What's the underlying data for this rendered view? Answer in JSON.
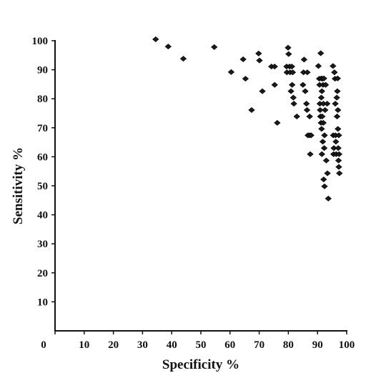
{
  "chart_data": {
    "type": "scatter",
    "xlabel": "Specificity %",
    "ylabel": "Sensitivity %",
    "xlim": [
      0,
      100
    ],
    "ylim": [
      0,
      100
    ],
    "xticks": [
      0,
      10,
      20,
      30,
      40,
      50,
      60,
      70,
      80,
      90,
      100
    ],
    "yticks": [
      10,
      20,
      30,
      40,
      50,
      60,
      70,
      80,
      90,
      100
    ],
    "grid": false,
    "legend": "none",
    "marker": "diamond",
    "color": "#1a1a1a",
    "points": [
      {
        "x": 34.5,
        "y": 100.5
      },
      {
        "x": 38.8,
        "y": 98.0
      },
      {
        "x": 44.0,
        "y": 93.8
      },
      {
        "x": 54.6,
        "y": 97.8
      },
      {
        "x": 60.4,
        "y": 89.2
      },
      {
        "x": 64.5,
        "y": 93.6
      },
      {
        "x": 65.3,
        "y": 86.9
      },
      {
        "x": 67.4,
        "y": 76.1
      },
      {
        "x": 69.8,
        "y": 95.6
      },
      {
        "x": 70.1,
        "y": 93.2
      },
      {
        "x": 71.1,
        "y": 82.6
      },
      {
        "x": 74.2,
        "y": 91.1
      },
      {
        "x": 75.3,
        "y": 91.1
      },
      {
        "x": 75.3,
        "y": 84.8
      },
      {
        "x": 76.2,
        "y": 71.7
      },
      {
        "x": 79.4,
        "y": 91.1
      },
      {
        "x": 79.5,
        "y": 89.1
      },
      {
        "x": 79.9,
        "y": 97.6
      },
      {
        "x": 80.1,
        "y": 95.4
      },
      {
        "x": 80.4,
        "y": 91.1
      },
      {
        "x": 80.6,
        "y": 89.1
      },
      {
        "x": 80.9,
        "y": 82.6
      },
      {
        "x": 81.2,
        "y": 91.1
      },
      {
        "x": 81.3,
        "y": 84.8
      },
      {
        "x": 81.5,
        "y": 89.1
      },
      {
        "x": 81.7,
        "y": 80.4
      },
      {
        "x": 81.9,
        "y": 78.3
      },
      {
        "x": 82.9,
        "y": 73.9
      },
      {
        "x": 85.0,
        "y": 84.8
      },
      {
        "x": 85.2,
        "y": 89.1
      },
      {
        "x": 85.4,
        "y": 93.5
      },
      {
        "x": 85.8,
        "y": 82.6
      },
      {
        "x": 86.2,
        "y": 78.3
      },
      {
        "x": 86.4,
        "y": 76.1
      },
      {
        "x": 86.5,
        "y": 89.1
      },
      {
        "x": 86.7,
        "y": 67.4
      },
      {
        "x": 87.3,
        "y": 73.9
      },
      {
        "x": 87.3,
        "y": 67.4
      },
      {
        "x": 87.5,
        "y": 60.9
      },
      {
        "x": 87.8,
        "y": 67.4
      },
      {
        "x": 90.3,
        "y": 91.3
      },
      {
        "x": 90.6,
        "y": 86.9
      },
      {
        "x": 90.7,
        "y": 84.8
      },
      {
        "x": 90.8,
        "y": 78.3
      },
      {
        "x": 90.9,
        "y": 76.1
      },
      {
        "x": 91.0,
        "y": 73.9
      },
      {
        "x": 91.1,
        "y": 95.7
      },
      {
        "x": 91.2,
        "y": 71.7
      },
      {
        "x": 91.3,
        "y": 87.0
      },
      {
        "x": 91.3,
        "y": 80.4
      },
      {
        "x": 91.4,
        "y": 69.6
      },
      {
        "x": 91.5,
        "y": 82.6
      },
      {
        "x": 91.5,
        "y": 60.9
      },
      {
        "x": 91.6,
        "y": 73.9
      },
      {
        "x": 91.7,
        "y": 86.9
      },
      {
        "x": 91.8,
        "y": 65.2
      },
      {
        "x": 91.9,
        "y": 84.8
      },
      {
        "x": 92.0,
        "y": 78.3
      },
      {
        "x": 92.0,
        "y": 71.7
      },
      {
        "x": 92.1,
        "y": 52.2
      },
      {
        "x": 92.2,
        "y": 87.0
      },
      {
        "x": 92.3,
        "y": 63.0
      },
      {
        "x": 92.4,
        "y": 67.4
      },
      {
        "x": 92.4,
        "y": 49.8
      },
      {
        "x": 92.6,
        "y": 76.1
      },
      {
        "x": 92.8,
        "y": 84.8
      },
      {
        "x": 93.0,
        "y": 58.7
      },
      {
        "x": 93.3,
        "y": 78.3
      },
      {
        "x": 93.4,
        "y": 54.3
      },
      {
        "x": 93.7,
        "y": 45.6
      },
      {
        "x": 95.3,
        "y": 91.3
      },
      {
        "x": 95.4,
        "y": 67.4
      },
      {
        "x": 95.5,
        "y": 60.9
      },
      {
        "x": 95.6,
        "y": 63.0
      },
      {
        "x": 95.8,
        "y": 89.1
      },
      {
        "x": 96.0,
        "y": 86.9
      },
      {
        "x": 96.1,
        "y": 78.3
      },
      {
        "x": 96.2,
        "y": 67.4
      },
      {
        "x": 96.3,
        "y": 65.2
      },
      {
        "x": 96.4,
        "y": 60.9
      },
      {
        "x": 96.6,
        "y": 80.4
      },
      {
        "x": 96.7,
        "y": 73.9
      },
      {
        "x": 96.8,
        "y": 82.6
      },
      {
        "x": 96.9,
        "y": 87.0
      },
      {
        "x": 97.0,
        "y": 76.1
      },
      {
        "x": 97.0,
        "y": 69.6
      },
      {
        "x": 97.1,
        "y": 63.0
      },
      {
        "x": 97.2,
        "y": 58.7
      },
      {
        "x": 97.3,
        "y": 67.4
      },
      {
        "x": 97.3,
        "y": 56.5
      },
      {
        "x": 97.4,
        "y": 60.9
      },
      {
        "x": 97.5,
        "y": 54.3
      }
    ]
  }
}
